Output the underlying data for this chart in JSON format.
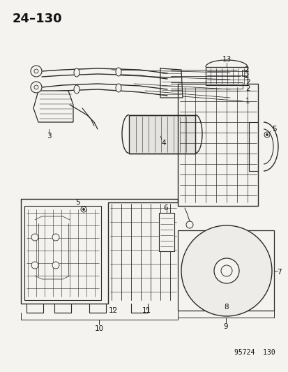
{
  "title": "24–130",
  "footer": "95724  130",
  "bg_color": "#f5f3ef",
  "line_color": "#2a2a2a",
  "label_color": "#111111",
  "title_fontsize": 13,
  "label_fontsize": 7.5,
  "footer_fontsize": 7,
  "figsize": [
    4.14,
    5.33
  ],
  "dpi": 100
}
